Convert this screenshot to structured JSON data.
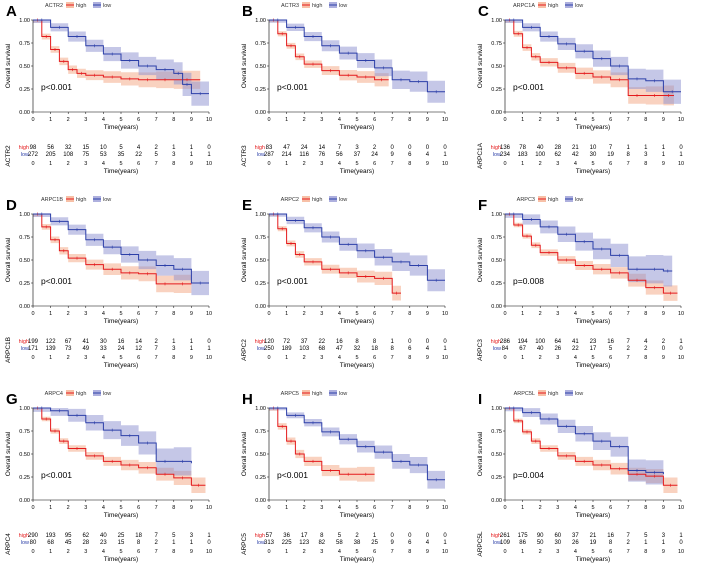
{
  "figure": {
    "y_label": "Overall survival",
    "x_label": "Time(years)",
    "risk_high": "high",
    "risk_low": "low",
    "legend_high": "high",
    "legend_low": "low"
  },
  "colors": {
    "high": "#e41a1c",
    "low": "#2c3fa8",
    "high_band": "#f4a582",
    "low_band": "#8c8fd0"
  },
  "chart_data": [
    {
      "type": "line",
      "panel": "A",
      "gene": "ACTR2",
      "pvalue": "p<0.001",
      "xlim": [
        0,
        10
      ],
      "ylim": [
        0,
        1
      ],
      "xticks": [
        0,
        1,
        2,
        3,
        4,
        5,
        6,
        7,
        8,
        9,
        10
      ],
      "yticks": [
        "0.00",
        "0.25",
        "0.50",
        "0.75",
        "1.00"
      ],
      "series": [
        {
          "name": "high",
          "x": [
            0,
            0.5,
            1,
            1.5,
            2,
            2.5,
            3,
            4,
            5,
            6,
            7,
            8,
            9.5
          ],
          "y": [
            1,
            0.82,
            0.68,
            0.55,
            0.46,
            0.42,
            0.4,
            0.38,
            0.36,
            0.35,
            0.35,
            0.35,
            0.35
          ],
          "band": 0.09
        },
        {
          "name": "low",
          "x": [
            0,
            1,
            2,
            3,
            4,
            5,
            6,
            7,
            8,
            8.5,
            9,
            10
          ],
          "y": [
            1,
            0.92,
            0.82,
            0.72,
            0.63,
            0.56,
            0.5,
            0.46,
            0.42,
            0.3,
            0.2,
            0.2
          ],
          "band": 0.11
        }
      ],
      "risk_table": {
        "high": [
          "98",
          "56",
          "32",
          "15",
          "10",
          "5",
          "4",
          "2",
          "1",
          "1",
          "0"
        ],
        "low": [
          "272",
          "205",
          "108",
          "75",
          "53",
          "35",
          "22",
          "5",
          "3",
          "1",
          "1"
        ],
        "times": [
          "0",
          "1",
          "2",
          "3",
          "4",
          "5",
          "6",
          "7",
          "8",
          "9",
          "10"
        ]
      }
    },
    {
      "type": "line",
      "panel": "B",
      "gene": "ACTR3",
      "pvalue": "p<0.001",
      "xlim": [
        0,
        10
      ],
      "ylim": [
        0,
        1
      ],
      "xticks": [
        0,
        1,
        2,
        3,
        4,
        5,
        6,
        7,
        8,
        9,
        10
      ],
      "yticks": [
        "0.00",
        "0.25",
        "0.50",
        "0.75",
        "1.00"
      ],
      "series": [
        {
          "name": "high",
          "x": [
            0,
            0.5,
            1,
            1.5,
            2,
            3,
            4,
            5,
            6,
            6.8
          ],
          "y": [
            1,
            0.85,
            0.72,
            0.6,
            0.52,
            0.45,
            0.4,
            0.38,
            0.35,
            0.35
          ],
          "band": 0.08
        },
        {
          "name": "low",
          "x": [
            0,
            1,
            2,
            3,
            4,
            5,
            6,
            7,
            8,
            9,
            10
          ],
          "y": [
            1,
            0.92,
            0.82,
            0.72,
            0.64,
            0.56,
            0.48,
            0.35,
            0.33,
            0.22,
            0.22
          ],
          "band": 0.1
        }
      ],
      "risk_table": {
        "high": [
          "83",
          "47",
          "24",
          "14",
          "7",
          "3",
          "2",
          "0",
          "0",
          "0",
          "0"
        ],
        "low": [
          "287",
          "214",
          "116",
          "76",
          "56",
          "37",
          "24",
          "9",
          "6",
          "4",
          "1"
        ],
        "times": [
          "0",
          "1",
          "2",
          "3",
          "4",
          "5",
          "6",
          "7",
          "8",
          "9",
          "10"
        ]
      }
    },
    {
      "type": "line",
      "panel": "C",
      "gene": "ARPC1A",
      "pvalue": "p<0.001",
      "xlim": [
        0,
        10
      ],
      "ylim": [
        0,
        1
      ],
      "xticks": [
        0,
        1,
        2,
        3,
        4,
        5,
        6,
        7,
        8,
        9,
        10
      ],
      "yticks": [
        "0.00",
        "0.25",
        "0.50",
        "0.75",
        "1.00"
      ],
      "series": [
        {
          "name": "high",
          "x": [
            0,
            0.5,
            1,
            1.5,
            2,
            3,
            4,
            5,
            6,
            7,
            8,
            9,
            9.6
          ],
          "y": [
            1,
            0.85,
            0.7,
            0.6,
            0.54,
            0.48,
            0.42,
            0.38,
            0.35,
            0.18,
            0.18,
            0.18,
            0.18
          ],
          "band": 0.09
        },
        {
          "name": "low",
          "x": [
            0,
            1,
            2,
            3,
            4,
            5,
            6,
            7,
            8,
            9,
            10
          ],
          "y": [
            1,
            0.92,
            0.82,
            0.74,
            0.66,
            0.58,
            0.5,
            0.36,
            0.34,
            0.22,
            0.22
          ],
          "band": 0.11
        }
      ],
      "risk_table": {
        "high": [
          "136",
          "78",
          "40",
          "28",
          "21",
          "10",
          "7",
          "1",
          "1",
          "1",
          "0"
        ],
        "low": [
          "234",
          "183",
          "100",
          "62",
          "42",
          "30",
          "19",
          "8",
          "3",
          "1",
          "1"
        ],
        "times": [
          "0",
          "1",
          "2",
          "3",
          "4",
          "5",
          "6",
          "7",
          "8",
          "9",
          "10"
        ]
      }
    },
    {
      "type": "line",
      "panel": "D",
      "gene": "ARPC1B",
      "pvalue": "p<0.001",
      "xlim": [
        0,
        10
      ],
      "ylim": [
        0,
        1
      ],
      "xticks": [
        0,
        1,
        2,
        3,
        4,
        5,
        6,
        7,
        8,
        9,
        10
      ],
      "yticks": [
        "0.00",
        "0.25",
        "0.50",
        "0.75",
        "1.00"
      ],
      "series": [
        {
          "name": "high",
          "x": [
            0,
            0.5,
            1,
            1.5,
            2,
            3,
            4,
            5,
            6,
            7,
            8,
            9
          ],
          "y": [
            1,
            0.86,
            0.72,
            0.6,
            0.52,
            0.45,
            0.4,
            0.36,
            0.35,
            0.24,
            0.24,
            0.24
          ],
          "band": 0.09
        },
        {
          "name": "low",
          "x": [
            0,
            1,
            2,
            3,
            4,
            5,
            6,
            7,
            8,
            9,
            10
          ],
          "y": [
            1,
            0.92,
            0.83,
            0.72,
            0.64,
            0.56,
            0.5,
            0.44,
            0.4,
            0.25,
            0.25
          ],
          "band": 0.11
        }
      ],
      "risk_table": {
        "high": [
          "199",
          "122",
          "67",
          "41",
          "30",
          "16",
          "14",
          "2",
          "1",
          "1",
          "0"
        ],
        "low": [
          "171",
          "139",
          "73",
          "49",
          "33",
          "24",
          "12",
          "7",
          "3",
          "1",
          "1"
        ],
        "times": [
          "0",
          "1",
          "2",
          "3",
          "4",
          "5",
          "6",
          "7",
          "8",
          "9",
          "10"
        ]
      }
    },
    {
      "type": "line",
      "panel": "E",
      "gene": "ARPC2",
      "pvalue": "p<0.001",
      "xlim": [
        0,
        10
      ],
      "ylim": [
        0,
        1
      ],
      "xticks": [
        0,
        1,
        2,
        3,
        4,
        5,
        6,
        7,
        8,
        9,
        10
      ],
      "yticks": [
        "0.00",
        "0.25",
        "0.50",
        "0.75",
        "1.00"
      ],
      "series": [
        {
          "name": "high",
          "x": [
            0,
            0.5,
            1,
            1.5,
            2,
            3,
            4,
            5,
            6,
            7,
            7.5
          ],
          "y": [
            1,
            0.84,
            0.68,
            0.56,
            0.48,
            0.4,
            0.36,
            0.32,
            0.3,
            0.14,
            0.14
          ],
          "band": 0.08
        },
        {
          "name": "low",
          "x": [
            0,
            1,
            2,
            3,
            4,
            5,
            6,
            7,
            8,
            9,
            10
          ],
          "y": [
            1,
            0.93,
            0.85,
            0.75,
            0.67,
            0.6,
            0.53,
            0.48,
            0.44,
            0.28,
            0.28
          ],
          "band": 0.1
        }
      ],
      "risk_table": {
        "high": [
          "120",
          "72",
          "37",
          "22",
          "16",
          "8",
          "8",
          "1",
          "0",
          "0",
          "0"
        ],
        "low": [
          "250",
          "189",
          "103",
          "68",
          "47",
          "32",
          "18",
          "8",
          "6",
          "4",
          "1"
        ],
        "times": [
          "0",
          "1",
          "2",
          "3",
          "4",
          "5",
          "6",
          "7",
          "8",
          "9",
          "10"
        ]
      }
    },
    {
      "type": "line",
      "panel": "F",
      "gene": "ARPC3",
      "pvalue": "p=0.008",
      "xlim": [
        0,
        10
      ],
      "ylim": [
        0,
        1
      ],
      "xticks": [
        0,
        1,
        2,
        3,
        4,
        5,
        6,
        7,
        8,
        9,
        10
      ],
      "yticks": [
        "0.00",
        "0.25",
        "0.50",
        "0.75",
        "1.00"
      ],
      "series": [
        {
          "name": "high",
          "x": [
            0,
            0.5,
            1,
            1.5,
            2,
            3,
            4,
            5,
            6,
            7,
            8,
            9,
            9.8
          ],
          "y": [
            1,
            0.88,
            0.76,
            0.66,
            0.58,
            0.5,
            0.44,
            0.4,
            0.36,
            0.28,
            0.2,
            0.14,
            0.14
          ],
          "band": 0.07
        },
        {
          "name": "low",
          "x": [
            0,
            1,
            2,
            3,
            4,
            5,
            6,
            7,
            8,
            9,
            9.5
          ],
          "y": [
            1,
            0.94,
            0.86,
            0.78,
            0.7,
            0.62,
            0.55,
            0.4,
            0.4,
            0.38,
            0.38
          ],
          "band": 0.14
        }
      ],
      "risk_table": {
        "high": [
          "286",
          "194",
          "100",
          "64",
          "41",
          "23",
          "16",
          "7",
          "4",
          "2",
          "1"
        ],
        "low": [
          "84",
          "67",
          "40",
          "26",
          "22",
          "17",
          "5",
          "2",
          "2",
          "0",
          "0"
        ],
        "times": [
          "0",
          "1",
          "2",
          "3",
          "4",
          "5",
          "6",
          "7",
          "8",
          "9",
          "10"
        ]
      }
    },
    {
      "type": "line",
      "panel": "G",
      "gene": "ARPC4",
      "pvalue": "p<0.001",
      "xlim": [
        0,
        10
      ],
      "ylim": [
        0,
        1
      ],
      "xticks": [
        0,
        1,
        2,
        3,
        4,
        5,
        6,
        7,
        8,
        9,
        10
      ],
      "yticks": [
        "0.00",
        "0.25",
        "0.50",
        "0.75",
        "1.00"
      ],
      "series": [
        {
          "name": "high",
          "x": [
            0,
            0.5,
            1,
            1.5,
            2,
            3,
            4,
            5,
            6,
            7,
            8,
            9,
            9.8
          ],
          "y": [
            1,
            0.88,
            0.75,
            0.64,
            0.56,
            0.48,
            0.42,
            0.38,
            0.35,
            0.28,
            0.24,
            0.16,
            0.16
          ],
          "band": 0.07
        },
        {
          "name": "low",
          "x": [
            0,
            1,
            2,
            3,
            4,
            5,
            6,
            7,
            8,
            9
          ],
          "y": [
            1,
            0.97,
            0.92,
            0.84,
            0.76,
            0.7,
            0.62,
            0.42,
            0.42,
            0.4
          ],
          "band": 0.14
        }
      ],
      "risk_table": {
        "high": [
          "290",
          "193",
          "95",
          "62",
          "40",
          "25",
          "18",
          "7",
          "5",
          "3",
          "1"
        ],
        "low": [
          "80",
          "68",
          "45",
          "28",
          "23",
          "15",
          "8",
          "2",
          "1",
          "1",
          "0"
        ],
        "times": [
          "0",
          "1",
          "2",
          "3",
          "4",
          "5",
          "6",
          "7",
          "8",
          "9",
          "10"
        ]
      }
    },
    {
      "type": "line",
      "panel": "H",
      "gene": "ARPC5",
      "pvalue": "p<0.001",
      "xlim": [
        0,
        10
      ],
      "ylim": [
        0,
        1
      ],
      "xticks": [
        0,
        1,
        2,
        3,
        4,
        5,
        6,
        7,
        8,
        9,
        10
      ],
      "yticks": [
        "0.00",
        "0.25",
        "0.50",
        "0.75",
        "1.00"
      ],
      "series": [
        {
          "name": "high",
          "x": [
            0,
            0.5,
            1,
            1.5,
            2,
            3,
            4,
            5,
            6
          ],
          "y": [
            1,
            0.8,
            0.64,
            0.5,
            0.42,
            0.32,
            0.28,
            0.28,
            0.28
          ],
          "band": 0.1
        },
        {
          "name": "low",
          "x": [
            0,
            1,
            2,
            3,
            4,
            5,
            6,
            7,
            8,
            9,
            10
          ],
          "y": [
            1,
            0.92,
            0.84,
            0.74,
            0.66,
            0.58,
            0.52,
            0.42,
            0.38,
            0.22,
            0.22
          ],
          "band": 0.08
        }
      ],
      "risk_table": {
        "high": [
          "57",
          "36",
          "17",
          "8",
          "5",
          "2",
          "1",
          "0",
          "0",
          "0",
          "0"
        ],
        "low": [
          "313",
          "225",
          "123",
          "82",
          "58",
          "38",
          "25",
          "9",
          "6",
          "4",
          "1"
        ],
        "times": [
          "0",
          "1",
          "2",
          "3",
          "4",
          "5",
          "6",
          "7",
          "8",
          "9",
          "10"
        ]
      }
    },
    {
      "type": "line",
      "panel": "I",
      "gene": "ARPC5L",
      "pvalue": "p=0.004",
      "xlim": [
        0,
        10
      ],
      "ylim": [
        0,
        1
      ],
      "xticks": [
        0,
        1,
        2,
        3,
        4,
        5,
        6,
        7,
        8,
        9,
        10
      ],
      "yticks": [
        "0.00",
        "0.25",
        "0.50",
        "0.75",
        "1.00"
      ],
      "series": [
        {
          "name": "high",
          "x": [
            0,
            0.5,
            1,
            1.5,
            2,
            3,
            4,
            5,
            6,
            7,
            8,
            9,
            9.8
          ],
          "y": [
            1,
            0.86,
            0.74,
            0.64,
            0.56,
            0.48,
            0.42,
            0.38,
            0.34,
            0.28,
            0.26,
            0.16,
            0.16
          ],
          "band": 0.07
        },
        {
          "name": "low",
          "x": [
            0,
            1,
            2,
            3,
            4,
            5,
            6,
            7,
            8,
            9
          ],
          "y": [
            1,
            0.95,
            0.88,
            0.8,
            0.72,
            0.64,
            0.58,
            0.32,
            0.3,
            0.28
          ],
          "band": 0.12
        }
      ],
      "risk_table": {
        "high": [
          "261",
          "175",
          "90",
          "60",
          "37",
          "21",
          "16",
          "7",
          "5",
          "3",
          "1"
        ],
        "low": [
          "109",
          "86",
          "50",
          "30",
          "26",
          "19",
          "8",
          "2",
          "1",
          "1",
          "0"
        ],
        "times": [
          "0",
          "1",
          "2",
          "3",
          "4",
          "5",
          "6",
          "7",
          "8",
          "9",
          "10"
        ]
      }
    }
  ]
}
